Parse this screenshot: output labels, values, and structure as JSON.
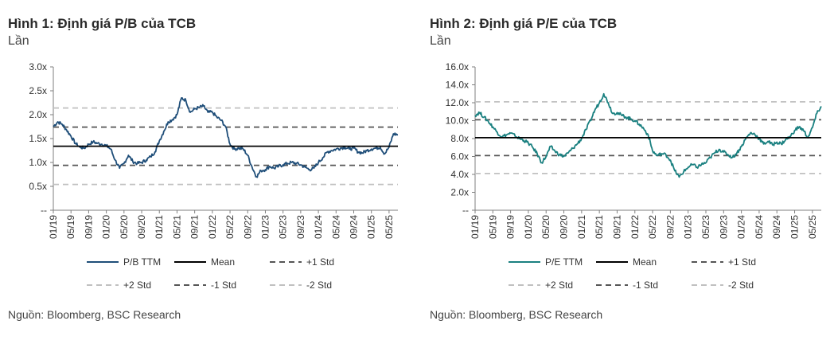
{
  "panels": [
    {
      "title": "Hình 1: Định giá P/B của TCB",
      "unit": "Lần",
      "source": "Nguồn: Bloomberg, BSC Research"
    },
    {
      "title": "Hình 2: Định giá P/E của TCB",
      "unit": "Lần",
      "source": "Nguồn: Bloomberg, BSC Research"
    }
  ],
  "chart_data": [
    {
      "type": "line",
      "title": "Hình 1: Định giá P/B của TCB",
      "ylabel": "Lần",
      "x_ticks": [
        "01/19",
        "05/19",
        "09/19",
        "01/20",
        "05/20",
        "09/20",
        "01/21",
        "05/21",
        "09/21",
        "01/22",
        "05/22",
        "09/22",
        "01/23",
        "05/23",
        "09/23",
        "01/24",
        "05/24",
        "09/24",
        "01/25",
        "05/25"
      ],
      "y_ticks": [
        "--",
        "0.5x",
        "1.0x",
        "1.5x",
        "2.0x",
        "2.5x",
        "3.0x"
      ],
      "y_tick_values": [
        0,
        0.5,
        1.0,
        1.5,
        2.0,
        2.5,
        3.0
      ],
      "ylim": [
        0,
        3.0
      ],
      "xlim": [
        "2019-01",
        "2025-07"
      ],
      "grid": false,
      "legend_position": "bottom",
      "series": [
        {
          "name": "P/B TTM",
          "color": "#1f4e79",
          "style": "solid",
          "points": [
            [
              "2019-01",
              1.75
            ],
            [
              "2019-02",
              1.85
            ],
            [
              "2019-03",
              1.8
            ],
            [
              "2019-04",
              1.68
            ],
            [
              "2019-05",
              1.55
            ],
            [
              "2019-06",
              1.4
            ],
            [
              "2019-07",
              1.32
            ],
            [
              "2019-08",
              1.3
            ],
            [
              "2019-09",
              1.38
            ],
            [
              "2019-10",
              1.43
            ],
            [
              "2019-11",
              1.4
            ],
            [
              "2019-12",
              1.38
            ],
            [
              "2020-01",
              1.35
            ],
            [
              "2020-02",
              1.28
            ],
            [
              "2020-03",
              1.05
            ],
            [
              "2020-04",
              0.88
            ],
            [
              "2020-05",
              0.98
            ],
            [
              "2020-06",
              1.15
            ],
            [
              "2020-07",
              1.02
            ],
            [
              "2020-08",
              0.98
            ],
            [
              "2020-09",
              1.0
            ],
            [
              "2020-10",
              1.05
            ],
            [
              "2020-11",
              1.12
            ],
            [
              "2020-12",
              1.22
            ],
            [
              "2021-01",
              1.45
            ],
            [
              "2021-02",
              1.65
            ],
            [
              "2021-03",
              1.85
            ],
            [
              "2021-04",
              1.9
            ],
            [
              "2021-05",
              2.0
            ],
            [
              "2021-06",
              2.35
            ],
            [
              "2021-07",
              2.3
            ],
            [
              "2021-08",
              2.05
            ],
            [
              "2021-09",
              2.12
            ],
            [
              "2021-10",
              2.15
            ],
            [
              "2021-11",
              2.18
            ],
            [
              "2021-12",
              2.05
            ],
            [
              "2022-01",
              2.05
            ],
            [
              "2022-02",
              1.95
            ],
            [
              "2022-03",
              1.88
            ],
            [
              "2022-04",
              1.75
            ],
            [
              "2022-05",
              1.38
            ],
            [
              "2022-06",
              1.28
            ],
            [
              "2022-07",
              1.3
            ],
            [
              "2022-08",
              1.28
            ],
            [
              "2022-09",
              1.15
            ],
            [
              "2022-10",
              0.9
            ],
            [
              "2022-11",
              0.7
            ],
            [
              "2022-12",
              0.83
            ],
            [
              "2023-01",
              0.85
            ],
            [
              "2023-02",
              0.92
            ],
            [
              "2023-03",
              0.88
            ],
            [
              "2023-04",
              0.92
            ],
            [
              "2023-05",
              0.95
            ],
            [
              "2023-06",
              0.98
            ],
            [
              "2023-07",
              1.0
            ],
            [
              "2023-08",
              0.98
            ],
            [
              "2023-09",
              0.95
            ],
            [
              "2023-10",
              0.9
            ],
            [
              "2023-11",
              0.85
            ],
            [
              "2023-12",
              0.88
            ],
            [
              "2024-01",
              1.0
            ],
            [
              "2024-02",
              1.1
            ],
            [
              "2024-03",
              1.22
            ],
            [
              "2024-04",
              1.25
            ],
            [
              "2024-05",
              1.28
            ],
            [
              "2024-06",
              1.3
            ],
            [
              "2024-07",
              1.32
            ],
            [
              "2024-08",
              1.28
            ],
            [
              "2024-09",
              1.3
            ],
            [
              "2024-10",
              1.22
            ],
            [
              "2024-11",
              1.2
            ],
            [
              "2024-12",
              1.25
            ],
            [
              "2025-01",
              1.28
            ],
            [
              "2025-02",
              1.3
            ],
            [
              "2025-03",
              1.32
            ],
            [
              "2025-04",
              1.18
            ],
            [
              "2025-05",
              1.32
            ],
            [
              "2025-06",
              1.6
            ],
            [
              "2025-07",
              1.58
            ]
          ]
        },
        {
          "name": "Mean",
          "color": "#000000",
          "style": "solid",
          "value": 1.34
        },
        {
          "name": "+1 Std",
          "color": "#555555",
          "style": "dashed",
          "value": 1.74
        },
        {
          "name": "+2 Std",
          "color": "#c0c0c0",
          "style": "dashed",
          "value": 2.14
        },
        {
          "name": "-1 Std",
          "color": "#555555",
          "style": "dashed",
          "value": 0.94
        },
        {
          "name": "-2 Std",
          "color": "#c0c0c0",
          "style": "dashed",
          "value": 0.54
        }
      ]
    },
    {
      "type": "line",
      "title": "Hình 2: Định giá P/E của TCB",
      "ylabel": "Lần",
      "x_ticks": [
        "01/19",
        "05/19",
        "09/19",
        "01/20",
        "05/20",
        "09/20",
        "01/21",
        "05/21",
        "09/21",
        "01/22",
        "05/22",
        "09/22",
        "01/23",
        "05/23",
        "09/23",
        "01/24",
        "05/24",
        "09/24",
        "01/25",
        "05/25"
      ],
      "y_ticks": [
        "--",
        "2.0x",
        "4.0x",
        "6.0x",
        "8.0x",
        "10.0x",
        "12.0x",
        "14.0x",
        "16.0x"
      ],
      "y_tick_values": [
        0,
        2,
        4,
        6,
        8,
        10,
        12,
        14,
        16
      ],
      "ylim": [
        0,
        16
      ],
      "xlim": [
        "2019-01",
        "2025-07"
      ],
      "grid": false,
      "legend_position": "bottom",
      "series": [
        {
          "name": "P/E TTM",
          "color": "#1a8080",
          "style": "solid",
          "points": [
            [
              "2019-01",
              10.6
            ],
            [
              "2019-02",
              10.9
            ],
            [
              "2019-03",
              10.4
            ],
            [
              "2019-04",
              9.9
            ],
            [
              "2019-05",
              9.3
            ],
            [
              "2019-06",
              8.7
            ],
            [
              "2019-07",
              8.2
            ],
            [
              "2019-08",
              8.4
            ],
            [
              "2019-09",
              8.6
            ],
            [
              "2019-10",
              8.3
            ],
            [
              "2019-11",
              8.0
            ],
            [
              "2019-12",
              7.8
            ],
            [
              "2020-01",
              7.5
            ],
            [
              "2020-02",
              7.0
            ],
            [
              "2020-03",
              6.3
            ],
            [
              "2020-04",
              5.3
            ],
            [
              "2020-05",
              6.0
            ],
            [
              "2020-06",
              7.1
            ],
            [
              "2020-07",
              6.6
            ],
            [
              "2020-08",
              6.2
            ],
            [
              "2020-09",
              6.0
            ],
            [
              "2020-10",
              6.4
            ],
            [
              "2020-11",
              6.9
            ],
            [
              "2020-12",
              7.4
            ],
            [
              "2021-01",
              8.0
            ],
            [
              "2021-02",
              9.0
            ],
            [
              "2021-03",
              10.0
            ],
            [
              "2021-04",
              11.2
            ],
            [
              "2021-05",
              12.0
            ],
            [
              "2021-06",
              13.0
            ],
            [
              "2021-07",
              12.0
            ],
            [
              "2021-08",
              10.8
            ],
            [
              "2021-09",
              10.9
            ],
            [
              "2021-10",
              10.6
            ],
            [
              "2021-11",
              10.4
            ],
            [
              "2021-12",
              10.2
            ],
            [
              "2022-01",
              10.0
            ],
            [
              "2022-02",
              9.6
            ],
            [
              "2022-03",
              9.1
            ],
            [
              "2022-04",
              8.4
            ],
            [
              "2022-05",
              6.6
            ],
            [
              "2022-06",
              6.1
            ],
            [
              "2022-07",
              6.3
            ],
            [
              "2022-08",
              6.2
            ],
            [
              "2022-09",
              5.6
            ],
            [
              "2022-10",
              4.4
            ],
            [
              "2022-11",
              3.7
            ],
            [
              "2022-12",
              4.3
            ],
            [
              "2023-01",
              4.8
            ],
            [
              "2023-02",
              5.1
            ],
            [
              "2023-03",
              4.8
            ],
            [
              "2023-04",
              5.1
            ],
            [
              "2023-05",
              5.3
            ],
            [
              "2023-06",
              5.9
            ],
            [
              "2023-07",
              6.4
            ],
            [
              "2023-08",
              6.8
            ],
            [
              "2023-09",
              6.5
            ],
            [
              "2023-10",
              6.2
            ],
            [
              "2023-11",
              5.9
            ],
            [
              "2023-12",
              6.4
            ],
            [
              "2024-01",
              7.1
            ],
            [
              "2024-02",
              8.0
            ],
            [
              "2024-03",
              8.6
            ],
            [
              "2024-04",
              8.5
            ],
            [
              "2024-05",
              8.0
            ],
            [
              "2024-06",
              7.4
            ],
            [
              "2024-07",
              7.7
            ],
            [
              "2024-08",
              7.3
            ],
            [
              "2024-09",
              7.6
            ],
            [
              "2024-10",
              7.4
            ],
            [
              "2024-11",
              7.9
            ],
            [
              "2024-12",
              8.2
            ],
            [
              "2025-01",
              8.9
            ],
            [
              "2025-02",
              9.3
            ],
            [
              "2025-03",
              8.9
            ],
            [
              "2025-04",
              8.1
            ],
            [
              "2025-05",
              9.2
            ],
            [
              "2025-06",
              10.8
            ],
            [
              "2025-07",
              11.6
            ]
          ]
        },
        {
          "name": "Mean",
          "color": "#000000",
          "style": "solid",
          "value": 8.1
        },
        {
          "name": "+1 Std",
          "color": "#555555",
          "style": "dashed",
          "value": 10.1
        },
        {
          "name": "+2 Std",
          "color": "#c0c0c0",
          "style": "dashed",
          "value": 12.1
        },
        {
          "name": "-1 Std",
          "color": "#555555",
          "style": "dashed",
          "value": 6.1
        },
        {
          "name": "-2 Std",
          "color": "#c0c0c0",
          "style": "dashed",
          "value": 4.1
        }
      ]
    }
  ]
}
